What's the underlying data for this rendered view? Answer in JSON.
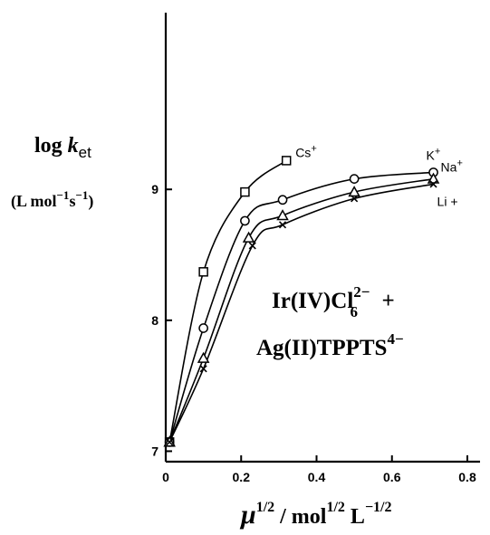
{
  "chart_data": {
    "type": "line",
    "xlabel": {
      "mu": "μ",
      "exp1": "1/2",
      "sep": " / mol",
      "exp2": "1/2",
      "unit": " L",
      "exp3": "−1/2"
    },
    "ylabel": {
      "log": "log ",
      "k": "k",
      "sub": "et",
      "units_open": "(L mol",
      "units_exp1": "−1",
      "units_s": "s",
      "units_exp2": "−1",
      "units_close": ")"
    },
    "annotation": {
      "line1_a": "Ir(IV)Cl",
      "line1_sup": "2−",
      "line1_sub": "6",
      "line1_b": "  +",
      "line2_a": "Ag(II)TPPTS",
      "line2_sup": "4−"
    },
    "xlim": [
      0,
      0.8
    ],
    "ylim": [
      6.92,
      10.35
    ],
    "x_ticks": [
      "0",
      "0.2",
      "0.4",
      "0.6",
      "0.8"
    ],
    "y_ticks": [
      "7",
      "8",
      "9"
    ],
    "grid": false,
    "series": [
      {
        "name": "Cs+",
        "label_text": "Cs",
        "label_sup": "+",
        "marker": "square",
        "x": [
          0.01,
          0.1,
          0.21,
          0.32
        ],
        "y": [
          7.07,
          8.37,
          8.98,
          9.22
        ]
      },
      {
        "name": "K+",
        "label_text": "K",
        "label_sup": "+",
        "marker": "circle",
        "x": [
          0.01,
          0.1,
          0.21,
          0.31,
          0.5,
          0.71
        ],
        "y": [
          7.07,
          7.94,
          8.76,
          8.92,
          9.08,
          9.13
        ]
      },
      {
        "name": "Na+",
        "label_text": "Na",
        "label_sup": "+",
        "marker": "triangle",
        "x": [
          0.01,
          0.1,
          0.22,
          0.31,
          0.5,
          0.71
        ],
        "y": [
          7.07,
          7.71,
          8.63,
          8.8,
          8.98,
          9.08
        ]
      },
      {
        "name": "Li +",
        "label_text": "Li +",
        "label_sup": "",
        "marker": "cross",
        "x": [
          0.01,
          0.1,
          0.23,
          0.31,
          0.5,
          0.71
        ],
        "y": [
          7.07,
          7.63,
          8.57,
          8.73,
          8.93,
          9.04
        ]
      }
    ]
  }
}
